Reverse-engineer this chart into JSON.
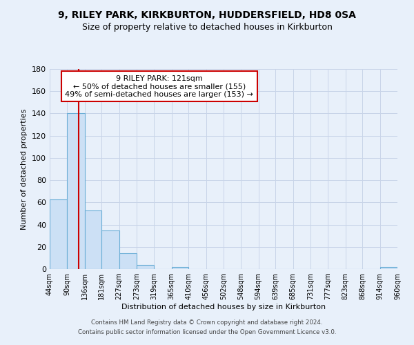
{
  "title": "9, RILEY PARK, KIRKBURTON, HUDDERSFIELD, HD8 0SA",
  "subtitle": "Size of property relative to detached houses in Kirkburton",
  "xlabel": "Distribution of detached houses by size in Kirkburton",
  "ylabel": "Number of detached properties",
  "footer_line1": "Contains HM Land Registry data © Crown copyright and database right 2024.",
  "footer_line2": "Contains public sector information licensed under the Open Government Licence v3.0.",
  "bin_edges": [
    44,
    90,
    136,
    181,
    227,
    273,
    319,
    365,
    410,
    456,
    502,
    548,
    594,
    639,
    685,
    731,
    777,
    823,
    868,
    914,
    960
  ],
  "bar_heights": [
    63,
    140,
    53,
    35,
    14,
    4,
    0,
    2,
    0,
    0,
    0,
    0,
    0,
    0,
    0,
    0,
    0,
    0,
    0,
    2
  ],
  "bar_color": "#cce0f5",
  "bar_edgecolor": "#6baed6",
  "red_line_x": 121,
  "ylim": [
    0,
    180
  ],
  "yticks": [
    0,
    20,
    40,
    60,
    80,
    100,
    120,
    140,
    160,
    180
  ],
  "annotation_title": "9 RILEY PARK: 121sqm",
  "annotation_line1": "← 50% of detached houses are smaller (155)",
  "annotation_line2": "49% of semi-detached houses are larger (153) →",
  "annotation_box_color": "#ffffff",
  "annotation_box_edgecolor": "#cc0000",
  "background_color": "#e8f0fa",
  "grid_color": "#c8d4e8",
  "title_fontsize": 10,
  "subtitle_fontsize": 9,
  "tick_label_size": 7,
  "ylabel_fontsize": 8,
  "xlabel_fontsize": 8
}
